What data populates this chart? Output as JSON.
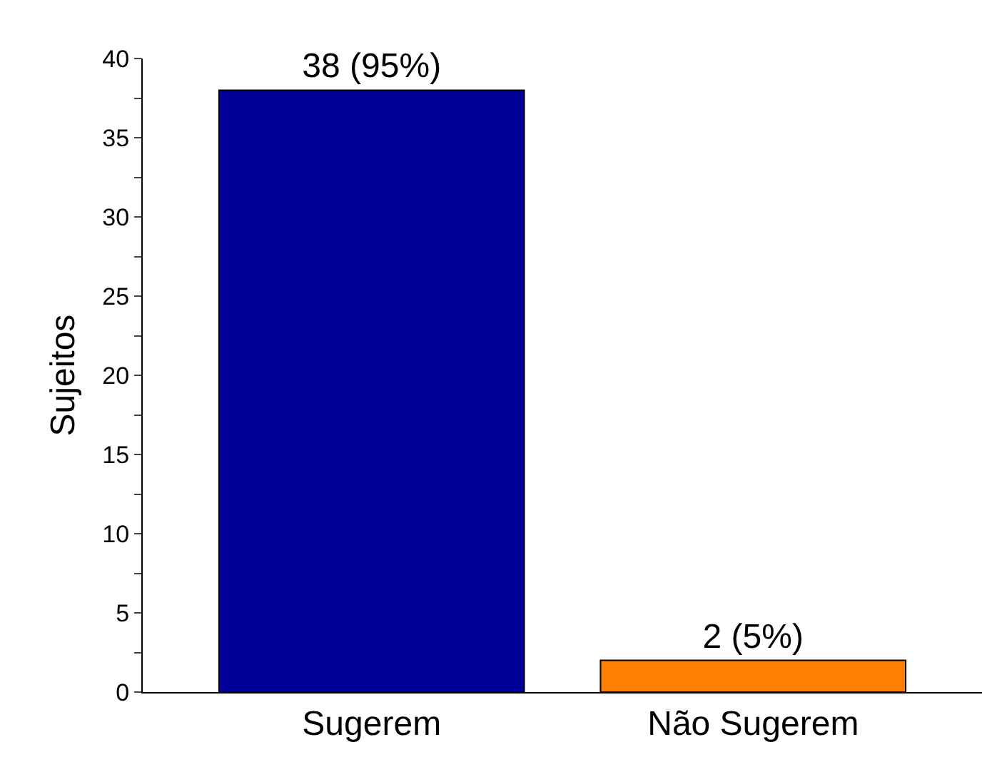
{
  "chart_data": {
    "type": "bar",
    "ylabel": "Sujeitos",
    "categories": [
      "Sugerem",
      "Não Sugerem"
    ],
    "values": [
      38,
      2
    ],
    "colors": [
      "#000099",
      "#ff8000"
    ],
    "value_labels": [
      "38 (95%)",
      "2 (5%)"
    ],
    "ylim": [
      0,
      40
    ],
    "yticks": [
      0,
      {
        "value": 2.5,
        "label": null
      },
      5,
      {
        "value": 7.5,
        "label": null
      },
      10,
      {
        "value": 12.5,
        "label": null
      },
      15,
      {
        "value": 17.5,
        "label": null
      },
      20,
      {
        "value": 22.5,
        "label": null
      },
      25,
      {
        "value": 27.5,
        "label": null
      },
      30,
      {
        "value": 32.5,
        "label": null
      },
      35,
      {
        "value": 37.5,
        "label": null
      },
      40
    ],
    "grid": false,
    "legend": false
  }
}
